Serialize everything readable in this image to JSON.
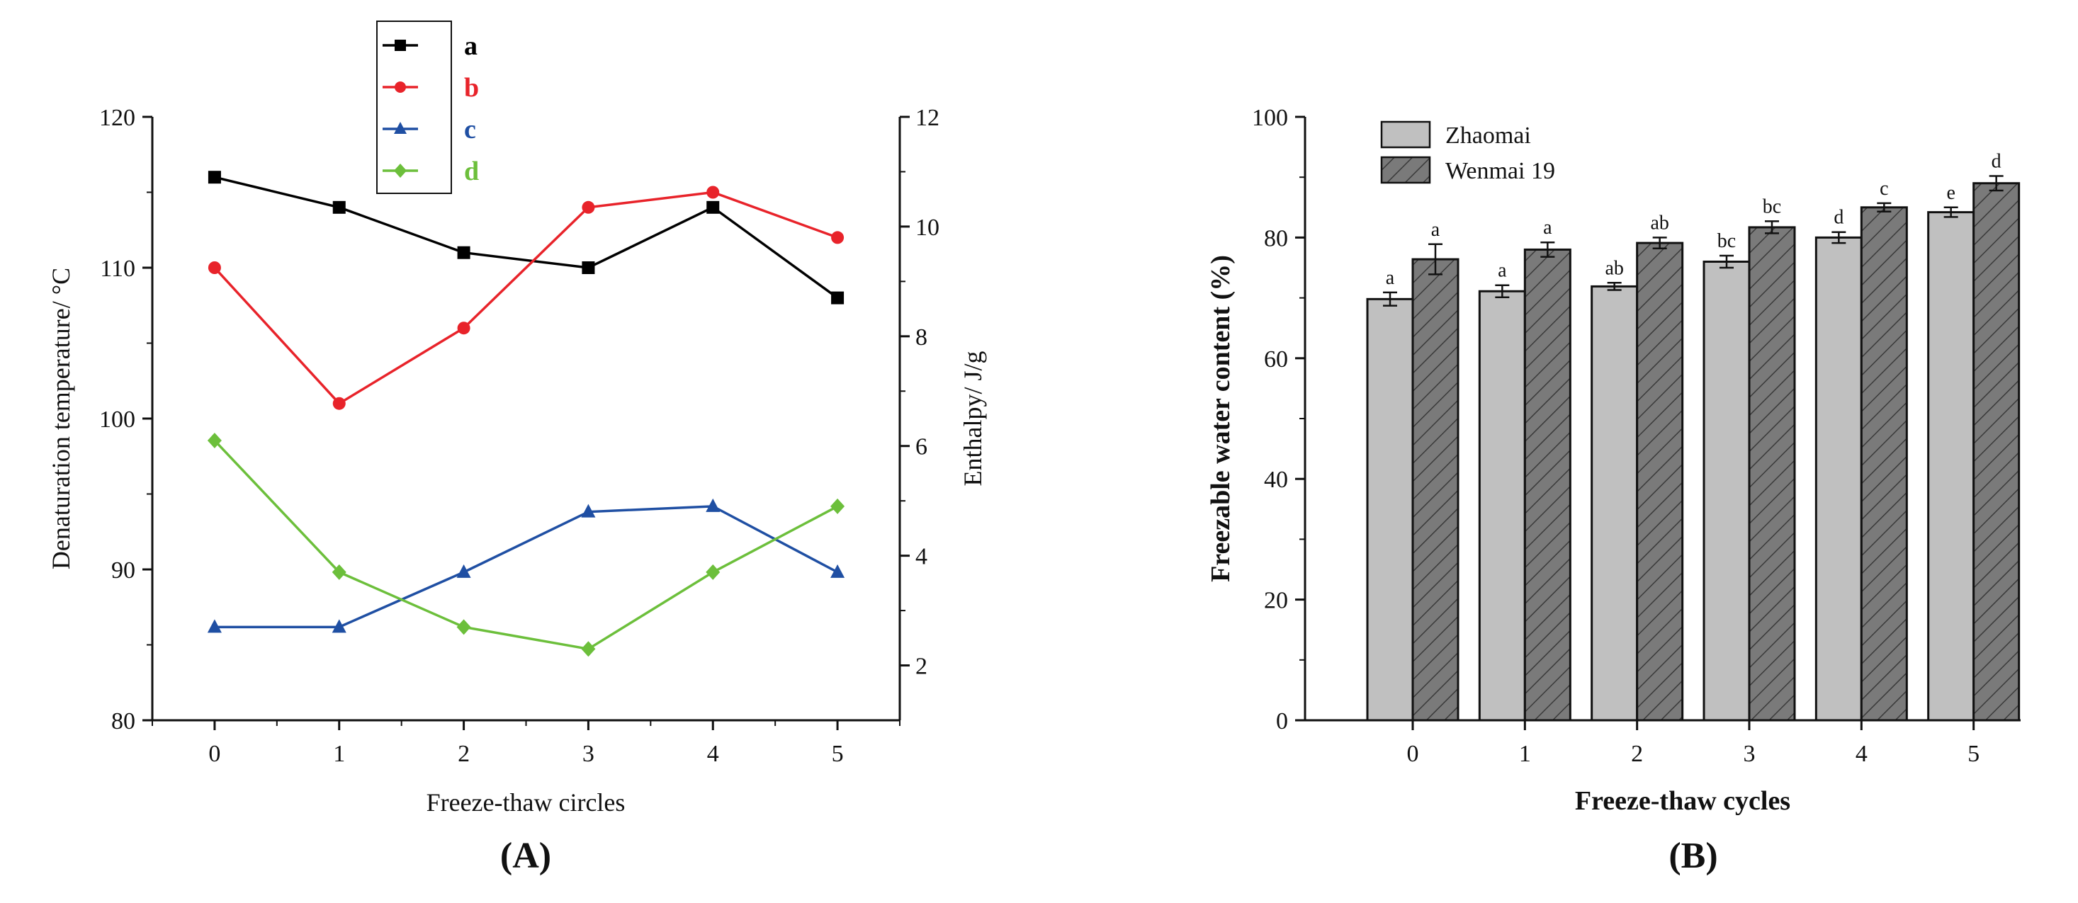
{
  "chart_data": [
    {
      "panel_label": "(A)",
      "type": "line",
      "xlabel": "Freeze-thaw circles",
      "ylabel": "Denaturation temperature/ °C",
      "y2label": "Enthalpy/ J/g",
      "x": [
        0,
        1,
        2,
        3,
        4,
        5
      ],
      "xticks": [
        "0",
        "1",
        "2",
        "3",
        "4",
        "5"
      ],
      "xlim": [
        -0.5,
        5.5
      ],
      "ylim": [
        80,
        120
      ],
      "yticks": [
        "80",
        "90",
        "100",
        "110",
        "120"
      ],
      "y2lim": [
        1,
        12
      ],
      "y2ticks": [
        "2",
        "4",
        "6",
        "8",
        "10",
        "12"
      ],
      "legend_position": "top-left",
      "series": [
        {
          "name": "a",
          "axis": "left",
          "color": "#000000",
          "marker": "square",
          "values": [
            116,
            114,
            111,
            110,
            114,
            108
          ]
        },
        {
          "name": "b",
          "axis": "left",
          "color": "#e8232a",
          "marker": "circle",
          "values": [
            110,
            101,
            106,
            114,
            115,
            112
          ]
        },
        {
          "name": "c",
          "axis": "right",
          "color": "#1f4fa3",
          "marker": "triangle",
          "values": [
            2.7,
            2.7,
            3.7,
            4.8,
            4.9,
            3.7
          ]
        },
        {
          "name": "d",
          "axis": "right",
          "color": "#6cbf3b",
          "marker": "diamond",
          "values": [
            6.1,
            3.7,
            2.7,
            2.3,
            3.7,
            4.9
          ]
        }
      ]
    },
    {
      "panel_label": "(B)",
      "type": "bar",
      "xlabel": "Freeze-thaw cycles",
      "ylabel": "Freezable water content (%)",
      "categories": [
        "0",
        "1",
        "2",
        "3",
        "4",
        "5"
      ],
      "ylim": [
        0,
        100
      ],
      "yticks": [
        "0",
        "20",
        "40",
        "60",
        "80",
        "100"
      ],
      "legend_position": "top-left",
      "series": [
        {
          "name": "Zhaomai",
          "color": "#c0c0c0",
          "pattern": "solid",
          "values": [
            69.8,
            71.1,
            71.9,
            76.0,
            80.0,
            84.2
          ],
          "errors": [
            1.1,
            1.0,
            0.6,
            1.0,
            0.9,
            0.8
          ],
          "labels": [
            "a",
            "a",
            "ab",
            "bc",
            "d",
            "e"
          ]
        },
        {
          "name": "Wenmai 19",
          "color": "#7a7a7a",
          "pattern": "hatched",
          "values": [
            76.4,
            78.0,
            79.1,
            81.7,
            85.0,
            89.0
          ],
          "errors": [
            2.5,
            1.2,
            0.9,
            1.0,
            0.7,
            1.2
          ],
          "labels": [
            "a",
            "a",
            "ab",
            "bc",
            "c",
            "d"
          ]
        }
      ]
    }
  ]
}
